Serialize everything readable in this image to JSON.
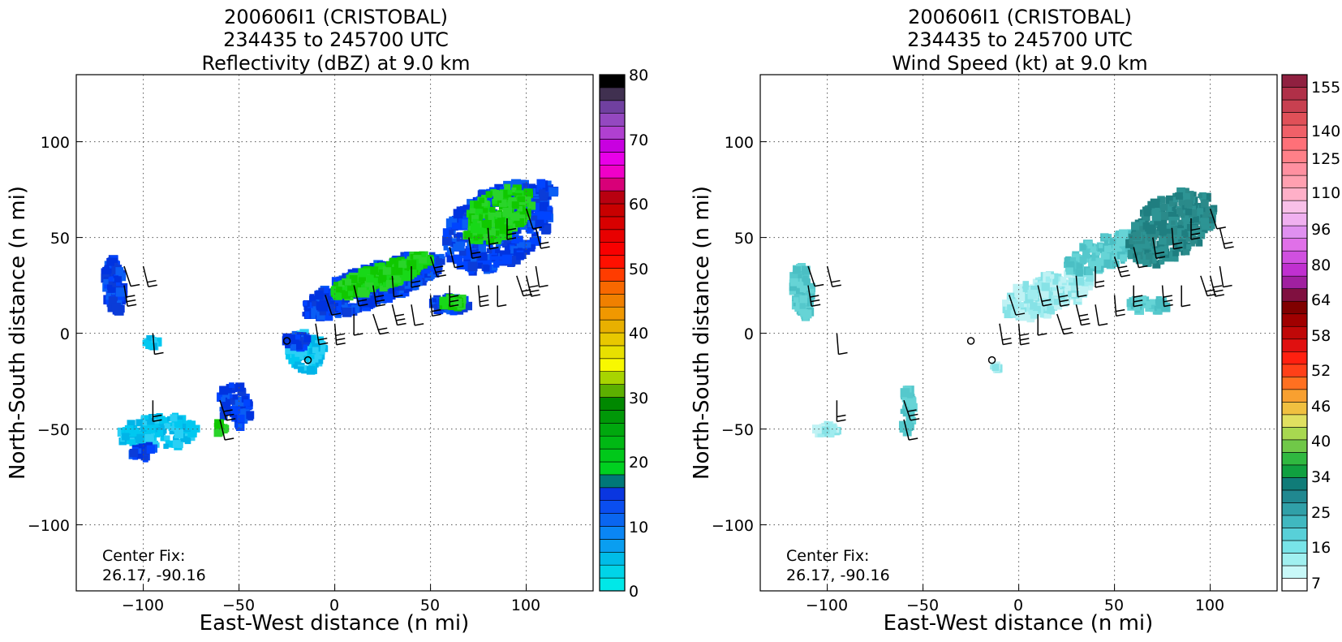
{
  "panels": [
    {
      "title_lines": [
        "200606I1 (CRISTOBAL)",
        "234435 to 245700 UTC",
        "Reflectivity (dBZ) at 9.0 km"
      ],
      "xlabel": "East-West distance (n mi)",
      "ylabel": "North-South distance (n mi)",
      "xticks": [
        "−100",
        "−50",
        "0",
        "50",
        "100"
      ],
      "yticks": [
        "100",
        "50",
        "0",
        "−50",
        "−100"
      ],
      "center_fix_label": "Center Fix:",
      "center_fix_coords": "26.17, -90.16",
      "colorbar_labels": [
        "80",
        "70",
        "60",
        "50",
        "40",
        "30",
        "20",
        "10",
        "0"
      ]
    },
    {
      "title_lines": [
        "200606I1 (CRISTOBAL)",
        "234435 to 245700 UTC",
        "Wind Speed (kt) at 9.0 km"
      ],
      "xlabel": "East-West distance (n mi)",
      "ylabel": "North-South distance (n mi)",
      "xticks": [
        "−100",
        "−50",
        "0",
        "50",
        "100"
      ],
      "yticks": [
        "100",
        "50",
        "0",
        "−50",
        "−100"
      ],
      "center_fix_label": "Center Fix:",
      "center_fix_coords": "26.17, -90.16",
      "colorbar_labels": [
        "155",
        "140",
        "125",
        "110",
        "96",
        "80",
        "64",
        "58",
        "52",
        "46",
        "40",
        "34",
        "25",
        "16",
        "7"
      ]
    }
  ],
  "chart_data": [
    {
      "type": "heatmap",
      "title": "200606I1 (CRISTOBAL) 234435 to 245700 UTC Reflectivity (dBZ) at 9.0 km",
      "xlabel": "East-West distance (n mi)",
      "ylabel": "North-South distance (n mi)",
      "xlim": [
        -135,
        135
      ],
      "ylim": [
        -135,
        135
      ],
      "grid": true,
      "colorbar": {
        "min": 0,
        "max": 80,
        "step": 2.5,
        "tick_values": [
          0,
          10,
          20,
          30,
          40,
          50,
          60,
          70,
          80
        ]
      },
      "center_fix": {
        "lat": 26.17,
        "lon": -90.16
      },
      "echo_regions": [
        {
          "x": [
            -120,
            -110
          ],
          "y": [
            10,
            40
          ],
          "dbz": 12
        },
        {
          "x": [
            -115,
            -70
          ],
          "y": [
            -65,
            -35
          ],
          "dbz": 8
        },
        {
          "x": [
            -95,
            -95
          ],
          "y": [
            -5,
            -5
          ],
          "dbz": 7
        },
        {
          "x": [
            -65,
            -40
          ],
          "y": [
            -55,
            -25
          ],
          "dbz": 14
        },
        {
          "x": [
            -30,
            0
          ],
          "y": [
            -25,
            5
          ],
          "dbz": 12
        },
        {
          "x": [
            -20,
            60
          ],
          "y": [
            0,
            45
          ],
          "dbz": 20
        },
        {
          "x": [
            50,
            120
          ],
          "y": [
            20,
            85
          ],
          "dbz": 19
        },
        {
          "x": [
            50,
            80
          ],
          "y": [
            5,
            20
          ],
          "dbz": 18
        }
      ],
      "circle_markers": [
        [
          -25,
          -4
        ],
        [
          -14,
          -14
        ]
      ],
      "wind_barbs": [
        [
          -110,
          35
        ],
        [
          -100,
          35
        ],
        [
          -110,
          25
        ],
        [
          -95,
          0
        ],
        [
          -95,
          -35
        ],
        [
          -60,
          -35
        ],
        [
          -60,
          -45
        ],
        [
          -10,
          5
        ],
        [
          0,
          5
        ],
        [
          10,
          10
        ],
        [
          20,
          10
        ],
        [
          30,
          15
        ],
        [
          40,
          15
        ],
        [
          50,
          20
        ],
        [
          60,
          25
        ],
        [
          -5,
          20
        ],
        [
          10,
          25
        ],
        [
          20,
          25
        ],
        [
          30,
          30
        ],
        [
          40,
          35
        ],
        [
          50,
          40
        ],
        [
          60,
          45
        ],
        [
          70,
          50
        ],
        [
          75,
          25
        ],
        [
          85,
          25
        ],
        [
          95,
          30
        ],
        [
          100,
          30
        ],
        [
          105,
          35
        ],
        [
          80,
          55
        ],
        [
          90,
          60
        ],
        [
          100,
          65
        ],
        [
          105,
          55
        ]
      ]
    },
    {
      "type": "heatmap",
      "title": "200606I1 (CRISTOBAL) 234435 to 245700 UTC Wind Speed (kt) at 9.0 km",
      "xlabel": "East-West distance (n mi)",
      "ylabel": "North-South distance (n mi)",
      "xlim": [
        -135,
        135
      ],
      "ylim": [
        -135,
        135
      ],
      "grid": true,
      "colorbar": {
        "min": 7,
        "max": 160,
        "tick_values": [
          7,
          16,
          25,
          34,
          40,
          46,
          52,
          58,
          64,
          80,
          96,
          110,
          125,
          140,
          155
        ]
      },
      "center_fix": {
        "lat": 26.17,
        "lon": -90.16
      },
      "wind_regions": [
        {
          "x": [
            -120,
            -105
          ],
          "y": [
            5,
            40
          ],
          "kt": 16
        },
        {
          "x": [
            -110,
            -95
          ],
          "y": [
            -55,
            -45
          ],
          "kt": 12
        },
        {
          "x": [
            -62,
            -55
          ],
          "y": [
            -55,
            -25
          ],
          "kt": 14
        },
        {
          "x": [
            -5,
            45
          ],
          "y": [
            0,
            40
          ],
          "kt": 13
        },
        {
          "x": [
            30,
            70
          ],
          "y": [
            30,
            55
          ],
          "kt": 22
        },
        {
          "x": [
            50,
            110
          ],
          "y": [
            35,
            85
          ],
          "kt": 28
        },
        {
          "x": [
            55,
            80
          ],
          "y": [
            10,
            20
          ],
          "kt": 18
        }
      ],
      "circle_markers": [
        [
          -25,
          -4
        ],
        [
          -14,
          -14
        ]
      ],
      "wind_barbs": [
        [
          -110,
          35
        ],
        [
          -100,
          35
        ],
        [
          -110,
          25
        ],
        [
          -95,
          0
        ],
        [
          -95,
          -35
        ],
        [
          -60,
          -35
        ],
        [
          -60,
          -45
        ],
        [
          -10,
          5
        ],
        [
          0,
          5
        ],
        [
          10,
          10
        ],
        [
          20,
          10
        ],
        [
          30,
          15
        ],
        [
          40,
          15
        ],
        [
          50,
          20
        ],
        [
          60,
          25
        ],
        [
          -5,
          20
        ],
        [
          10,
          25
        ],
        [
          20,
          25
        ],
        [
          30,
          30
        ],
        [
          40,
          35
        ],
        [
          50,
          40
        ],
        [
          60,
          45
        ],
        [
          70,
          50
        ],
        [
          75,
          25
        ],
        [
          85,
          25
        ],
        [
          95,
          30
        ],
        [
          100,
          30
        ],
        [
          105,
          35
        ],
        [
          80,
          55
        ],
        [
          90,
          60
        ],
        [
          100,
          65
        ],
        [
          105,
          55
        ]
      ]
    }
  ]
}
